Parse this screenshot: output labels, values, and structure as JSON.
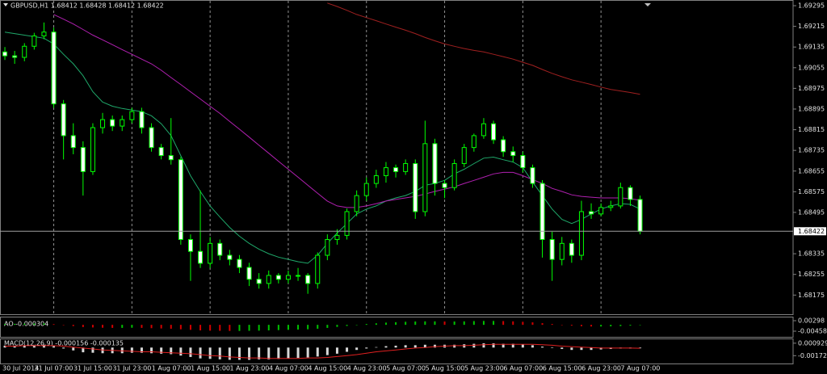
{
  "chart_data": [
    {
      "type": "candlestick",
      "title": "GBPUSD,H1  1.68412 1.68428 1.68412 1.68422",
      "x": [
        null,
        "30 Jul 2014",
        null,
        null,
        null,
        "31 Jul 07:00",
        null,
        null,
        null,
        "31 Jul 15:00",
        null,
        null,
        null,
        "31 Jul 23:00",
        null,
        null,
        null,
        "1 Aug 07:00",
        null,
        null,
        null,
        "1 Aug 15:00",
        null,
        null,
        null,
        "1 Aug 23:00",
        null,
        null,
        null,
        "4 Aug 07:00",
        null,
        null,
        null,
        "4 Aug 15:00",
        null,
        null,
        null,
        "4 Aug 23:00",
        null,
        null,
        null,
        "5 Aug 07:00",
        null,
        null,
        null,
        "5 Aug 15:00",
        null,
        null,
        null,
        "5 Aug 23:00",
        null,
        null,
        null,
        "6 Aug 07:00",
        null,
        null,
        null,
        "6 Aug 15:00",
        null,
        null,
        null,
        "6 Aug 23:00",
        null,
        null,
        null,
        "7 Aug 07:00"
      ],
      "ohlc": [
        [
          1.69116,
          1.69135,
          1.69085,
          1.69101
        ],
        [
          1.69101,
          1.6912,
          1.6907,
          1.69095
        ],
        [
          1.69095,
          1.6915,
          1.6908,
          1.69138
        ],
        [
          1.69138,
          1.6919,
          1.69125,
          1.69178
        ],
        [
          1.69178,
          1.6923,
          1.69165,
          1.69193
        ],
        [
          1.69193,
          1.6921,
          1.689,
          1.68915
        ],
        [
          1.68915,
          1.6893,
          1.687,
          1.68792
        ],
        [
          1.68792,
          1.6884,
          1.6872,
          1.68746
        ],
        [
          1.68746,
          1.6877,
          1.6856,
          1.68653
        ],
        [
          1.68653,
          1.6884,
          1.6864,
          1.68823
        ],
        [
          1.68823,
          1.6888,
          1.688,
          1.68854
        ],
        [
          1.68854,
          1.6887,
          1.6881,
          1.68829
        ],
        [
          1.68829,
          1.6887,
          1.6881,
          1.68854
        ],
        [
          1.68854,
          1.689,
          1.6884,
          1.68885
        ],
        [
          1.68885,
          1.689,
          1.688,
          1.68823
        ],
        [
          1.68823,
          1.6884,
          1.6873,
          1.68746
        ],
        [
          1.68746,
          1.6876,
          1.687,
          1.68715
        ],
        [
          1.68715,
          1.6886,
          1.6868,
          1.68699
        ],
        [
          1.68699,
          1.6871,
          1.6837,
          1.6839
        ],
        [
          1.6839,
          1.6841,
          1.6823,
          1.68344
        ],
        [
          1.68344,
          1.6858,
          1.6828,
          1.68298
        ],
        [
          1.68298,
          1.684,
          1.6828,
          1.68375
        ],
        [
          1.68375,
          1.6839,
          1.6831,
          1.68329
        ],
        [
          1.68329,
          1.6835,
          1.6829,
          1.68313
        ],
        [
          1.68313,
          1.6833,
          1.6826,
          1.68282
        ],
        [
          1.68282,
          1.683,
          1.6821,
          1.68236
        ],
        [
          1.68236,
          1.6826,
          1.682,
          1.6822
        ],
        [
          1.6822,
          1.6827,
          1.682,
          1.68251
        ],
        [
          1.68251,
          1.6826,
          1.6822,
          1.68236
        ],
        [
          1.68236,
          1.6827,
          1.6822,
          1.68251
        ],
        [
          1.68251,
          1.6828,
          1.6823,
          1.68251
        ],
        [
          1.68251,
          1.6826,
          1.6818,
          1.6822
        ],
        [
          1.6822,
          1.6834,
          1.682,
          1.68329
        ],
        [
          1.68329,
          1.6841,
          1.6831,
          1.6839
        ],
        [
          1.6839,
          1.6843,
          1.6837,
          1.68406
        ],
        [
          1.68406,
          1.6851,
          1.6839,
          1.68498
        ],
        [
          1.68498,
          1.6858,
          1.6848,
          1.6856
        ],
        [
          1.6856,
          1.6863,
          1.6854,
          1.68607
        ],
        [
          1.68607,
          1.6866,
          1.6859,
          1.68637
        ],
        [
          1.68637,
          1.6869,
          1.6861,
          1.68668
        ],
        [
          1.68668,
          1.6868,
          1.6863,
          1.68653
        ],
        [
          1.68653,
          1.687,
          1.6864,
          1.68684
        ],
        [
          1.68684,
          1.687,
          1.6847,
          1.68498
        ],
        [
          1.68498,
          1.6885,
          1.6848,
          1.68761
        ],
        [
          1.68761,
          1.6878,
          1.6856,
          1.68607
        ],
        [
          1.68607,
          1.6862,
          1.6855,
          1.68591
        ],
        [
          1.68591,
          1.687,
          1.6858,
          1.68684
        ],
        [
          1.68684,
          1.6876,
          1.6867,
          1.68746
        ],
        [
          1.68746,
          1.688,
          1.6873,
          1.68792
        ],
        [
          1.68792,
          1.6886,
          1.6878,
          1.68838
        ],
        [
          1.68838,
          1.6885,
          1.6876,
          1.68776
        ],
        [
          1.68776,
          1.6879,
          1.6871,
          1.6873
        ],
        [
          1.6873,
          1.6875,
          1.6869,
          1.68715
        ],
        [
          1.68715,
          1.6873,
          1.6865,
          1.68668
        ],
        [
          1.68668,
          1.6868,
          1.6859,
          1.68607
        ],
        [
          1.68607,
          1.6862,
          1.6832,
          1.6839
        ],
        [
          1.6839,
          1.6842,
          1.6823,
          1.68313
        ],
        [
          1.68313,
          1.684,
          1.6829,
          1.68375
        ],
        [
          1.68375,
          1.6839,
          1.683,
          1.68329
        ],
        [
          1.68329,
          1.6854,
          1.6831,
          1.68498
        ],
        [
          1.68498,
          1.6853,
          1.6847,
          1.68489
        ],
        [
          1.68489,
          1.6853,
          1.6848,
          1.68514
        ],
        [
          1.68514,
          1.6854,
          1.685,
          1.6852
        ],
        [
          1.6852,
          1.6861,
          1.6851,
          1.68591
        ],
        [
          1.68591,
          1.686,
          1.6852,
          1.68545
        ],
        [
          1.68545,
          1.6856,
          1.6841,
          1.68422
        ]
      ],
      "up_color": "#000000",
      "down_color": "#ffffff",
      "wick_color": "#00ff00",
      "lines": [
        {
          "color": "#1fa86a",
          "values": [
            1.69193,
            1.69187,
            1.69181,
            1.69175,
            1.69169,
            1.69147,
            1.69107,
            1.6907,
            1.69024,
            1.68962,
            1.68922,
            1.68906,
            1.68897,
            1.68891,
            1.68885,
            1.68869,
            1.68838,
            1.68792,
            1.68715,
            1.68637,
            1.68576,
            1.6852,
            1.68477,
            1.68437,
            1.68403,
            1.68375,
            1.68353,
            1.68335,
            1.68322,
            1.68313,
            1.68304,
            1.68298,
            1.68329,
            1.68375,
            1.68415,
            1.68452,
            1.68489,
            1.68508,
            1.6852,
            1.68539,
            1.68551,
            1.6856,
            1.68576,
            1.686,
            1.68607,
            1.68619,
            1.68644,
            1.68662,
            1.68684,
            1.68705,
            1.68709,
            1.68699,
            1.6869,
            1.68668,
            1.68613,
            1.6856,
            1.68508,
            1.68468,
            1.68452,
            1.68468,
            1.68489,
            1.68508,
            1.6852,
            1.68529,
            1.68526,
            1.68508
          ]
        },
        {
          "color": "#b020b0",
          "values": [
            null,
            null,
            null,
            null,
            null,
            1.69261,
            1.69243,
            1.69224,
            1.69203,
            1.69181,
            1.69163,
            1.69144,
            1.69125,
            1.69107,
            1.69088,
            1.6907,
            1.69045,
            1.69017,
            1.6899,
            1.68962,
            1.68934,
            1.68906,
            1.68878,
            1.68847,
            1.68817,
            1.68786,
            1.68755,
            1.68724,
            1.68693,
            1.68662,
            1.68631,
            1.686,
            1.68569,
            1.68539,
            1.6852,
            1.68514,
            1.68514,
            1.6852,
            1.68529,
            1.68539,
            1.68545,
            1.68551,
            1.68557,
            1.68566,
            1.68576,
            1.68585,
            1.68594,
            1.68607,
            1.68619,
            1.68631,
            1.68644,
            1.6865,
            1.6865,
            1.68637,
            1.68622,
            1.68607,
            1.68588,
            1.68576,
            1.68563,
            1.68557,
            1.68554,
            1.68551,
            1.68551,
            1.68551,
            1.68548,
            1.68542
          ]
        },
        {
          "color": "#a02020",
          "values": [
            null,
            null,
            null,
            null,
            null,
            null,
            null,
            null,
            null,
            null,
            null,
            null,
            null,
            null,
            null,
            null,
            null,
            null,
            null,
            null,
            null,
            null,
            null,
            null,
            null,
            null,
            null,
            null,
            null,
            null,
            null,
            null,
            null,
            1.69305,
            1.69292,
            1.69277,
            1.69261,
            1.69249,
            1.69237,
            1.69224,
            1.69212,
            1.692,
            1.69187,
            1.69172,
            1.69159,
            1.69147,
            1.69138,
            1.69129,
            1.69122,
            1.69116,
            1.69107,
            1.69098,
            1.69088,
            1.69076,
            1.69064,
            1.69048,
            1.69033,
            1.6902,
            1.69008,
            1.68999,
            1.6899,
            1.6898,
            1.68971,
            1.68965,
            1.68959,
            1.68952
          ]
        }
      ],
      "ylim": [
        1.68104,
        1.69317
      ],
      "yticks": [
        1.68175,
        1.68255,
        1.68335,
        1.68495,
        1.68575,
        1.68655,
        1.68735,
        1.68815,
        1.68895,
        1.68975,
        1.69055,
        1.69135,
        1.69215,
        1.69295
      ],
      "last_price": 1.68422,
      "grid": true
    },
    {
      "type": "histogram-ao",
      "label": "AO -0.000304",
      "up_color": "#00c000",
      "down_color": "#d00000",
      "values": [
        0.0006,
        0.0007,
        0.0008,
        0.0009,
        0.001,
        0.0005,
        -0.0002,
        -0.0009,
        -0.0016,
        -0.0019,
        -0.0021,
        -0.0022,
        -0.0022,
        -0.0021,
        -0.0022,
        -0.0024,
        -0.0026,
        -0.0028,
        -0.0032,
        -0.0036,
        -0.004,
        -0.0042,
        -0.0043,
        -0.0044,
        -0.0044,
        -0.0043,
        -0.0042,
        -0.004,
        -0.0038,
        -0.0036,
        -0.0034,
        -0.0032,
        -0.0028,
        -0.0022,
        -0.0015,
        -0.0008,
        0,
        0.0006,
        0.0011,
        0.0016,
        0.0019,
        0.0022,
        0.0024,
        0.0025,
        0.0025,
        0.0024,
        0.0024,
        0.0025,
        0.0027,
        0.0028,
        0.0028,
        0.0027,
        0.0025,
        0.0022,
        0.0018,
        0.0012,
        0.0006,
        0,
        -0.0006,
        -0.001,
        -0.0012,
        -0.0012,
        -0.0011,
        -0.0009,
        -0.0006,
        -0.000304
      ],
      "ylim": [
        -0.00865,
        0.00473
      ],
      "yticks": [
        -0.00458,
        0.00298
      ]
    },
    {
      "type": "macd",
      "label": "MACD(12,26,9) -0.000156 -0.000135",
      "color": "#d8d8d8",
      "signal_color": "#e02020",
      "values": [
        0.0004,
        0.0004,
        0.0005,
        0.0005,
        0.0006,
        0.0003,
        -0.0002,
        -0.0006,
        -0.001,
        -0.0011,
        -0.0012,
        -0.0012,
        -0.0012,
        -0.0011,
        -0.0011,
        -0.0012,
        -0.0013,
        -0.0014,
        -0.0017,
        -0.002,
        -0.0023,
        -0.0024,
        -0.0025,
        -0.0026,
        -0.0026,
        -0.0026,
        -0.0025,
        -0.0025,
        -0.0024,
        -0.0023,
        -0.0022,
        -0.0021,
        -0.0019,
        -0.0016,
        -0.0013,
        -0.0009,
        -0.0005,
        -0.0002,
        0.0001,
        0.0003,
        0.0004,
        0.0005,
        0.0005,
        0.0006,
        0.0006,
        0.0006,
        0.0006,
        0.0007,
        0.0008,
        0.0009,
        0.0009,
        0.0008,
        0.0008,
        0.0007,
        0.0005,
        0.0002,
        -0.0001,
        -0.0003,
        -0.0005,
        -0.0005,
        -0.0005,
        -0.0004,
        -0.0003,
        -0.0002,
        -0.0002,
        -0.000156
      ],
      "signal": [
        0.0003,
        0.0003,
        0.0004,
        0.0004,
        0.0004,
        0.0004,
        0.0003,
        0.0001,
        -0.0001,
        -0.0003,
        -0.0005,
        -0.0006,
        -0.0007,
        -0.0008,
        -0.0009,
        -0.0009,
        -0.001,
        -0.0011,
        -0.0012,
        -0.0013,
        -0.0015,
        -0.0017,
        -0.0018,
        -0.002,
        -0.0021,
        -0.0022,
        -0.0022,
        -0.0023,
        -0.0023,
        -0.0023,
        -0.0023,
        -0.0022,
        -0.0022,
        -0.0021,
        -0.0019,
        -0.0017,
        -0.0015,
        -0.0012,
        -0.0009,
        -0.0007,
        -0.0005,
        -0.0003,
        -0.0001,
        0,
        0.0002,
        0.0003,
        0.0004,
        0.0004,
        0.0005,
        0.0006,
        0.0007,
        0.0007,
        0.0007,
        0.0007,
        0.0007,
        0.0006,
        0.0005,
        0.0003,
        0.0002,
        0.0001,
        0,
        -0.0001,
        -0.0001,
        -0.0001,
        -0.0001,
        -0.000135
      ],
      "ylim": [
        -0.00338,
        0.00159
      ],
      "yticks": [
        -0.00172,
        0.000929
      ]
    }
  ]
}
